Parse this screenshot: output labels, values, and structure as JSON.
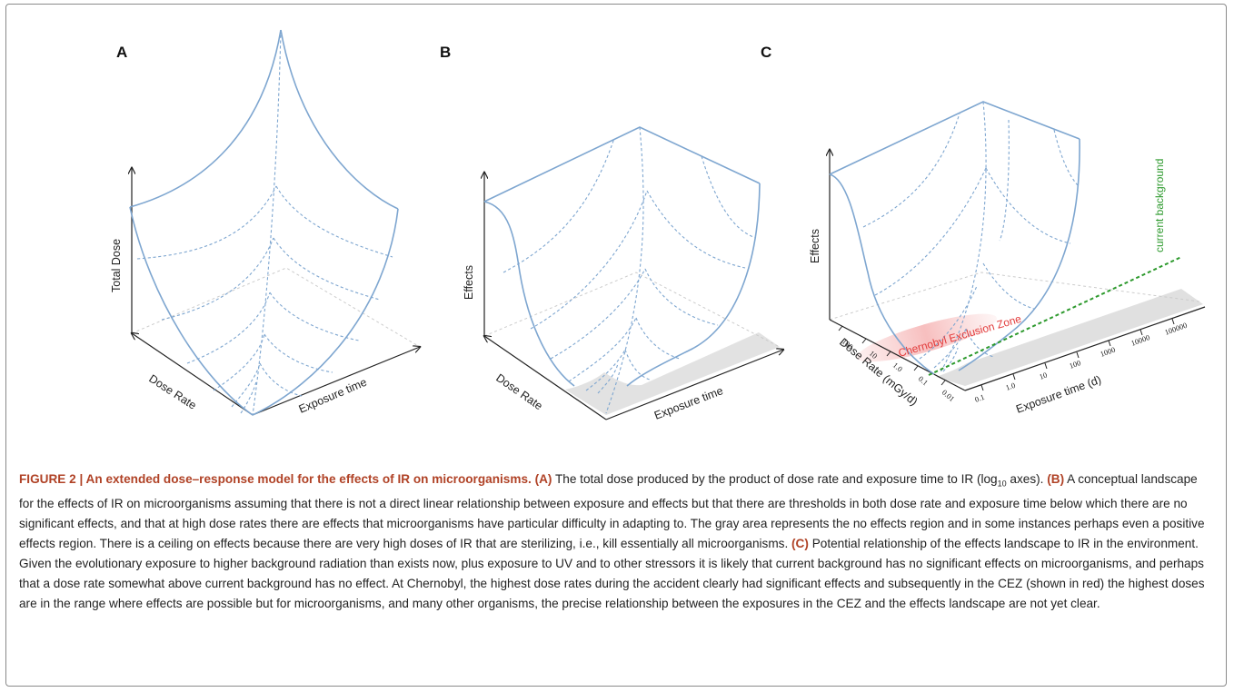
{
  "panels": {
    "a": {
      "letter": "A",
      "y_axis": "Total Dose",
      "x_left": "Dose Rate",
      "x_right": "Exposure time"
    },
    "b": {
      "letter": "B",
      "y_axis": "Effects",
      "x_left": "Dose Rate",
      "x_right": "Exposure time"
    },
    "c": {
      "letter": "C",
      "y_axis": "Effects",
      "x_left": "Dose Rate (mGy/d)",
      "x_right": "Exposure time (d)",
      "dose_rate_ticks": [
        "100",
        "10",
        "1.0",
        "0.1",
        "0.01"
      ],
      "exposure_ticks": [
        "0.1",
        "1.0",
        "10",
        "100",
        "1000",
        "10000",
        "100000"
      ],
      "zone_label": "Chernobyl Exclusion Zone",
      "background_label": "current background",
      "zone_color": "#e23b3b",
      "background_color": "#2e9a2e"
    }
  },
  "caption": {
    "title": "FIGURE 2 | An extended dose–response model for the effects of IR on microorganisms.",
    "a_label": "(A)",
    "a_text_1": "The total dose produced by the product of dose rate and exposure time to IR (log",
    "a_sub": "10",
    "a_text_2": "axes).",
    "b_label": "(B)",
    "b_text": "A conceptual landscape for the effects of IR on microorganisms assuming that there is not a direct linear relationship between exposure and effects but that there are thresholds in both dose rate and exposure time below which there are no significant effects, and that at high dose rates there are effects that microorganisms have particular difficulty in adapting to. The gray area represents the no effects region and in some instances perhaps even a positive effects region. There is a ceiling on effects because there are very high doses of IR that are sterilizing, i.e., kill essentially all microorganisms.",
    "c_label": "(C)",
    "c_text": "Potential relationship of the effects landscape to IR in the environment. Given the evolutionary exposure to higher background radiation than exists now, plus exposure to UV and to other stressors it is likely that current background has no significant effects on microorganisms, and perhaps that a dose rate somewhat above current background has no effect. At Chernobyl, the highest dose rates during the accident clearly had significant effects and subsequently in the CEZ (shown in red) the highest doses are in the range where effects are possible but for microorganisms, and many other organisms, the precise relationship between the exposures in the CEZ and the effects landscape are not yet clear."
  }
}
